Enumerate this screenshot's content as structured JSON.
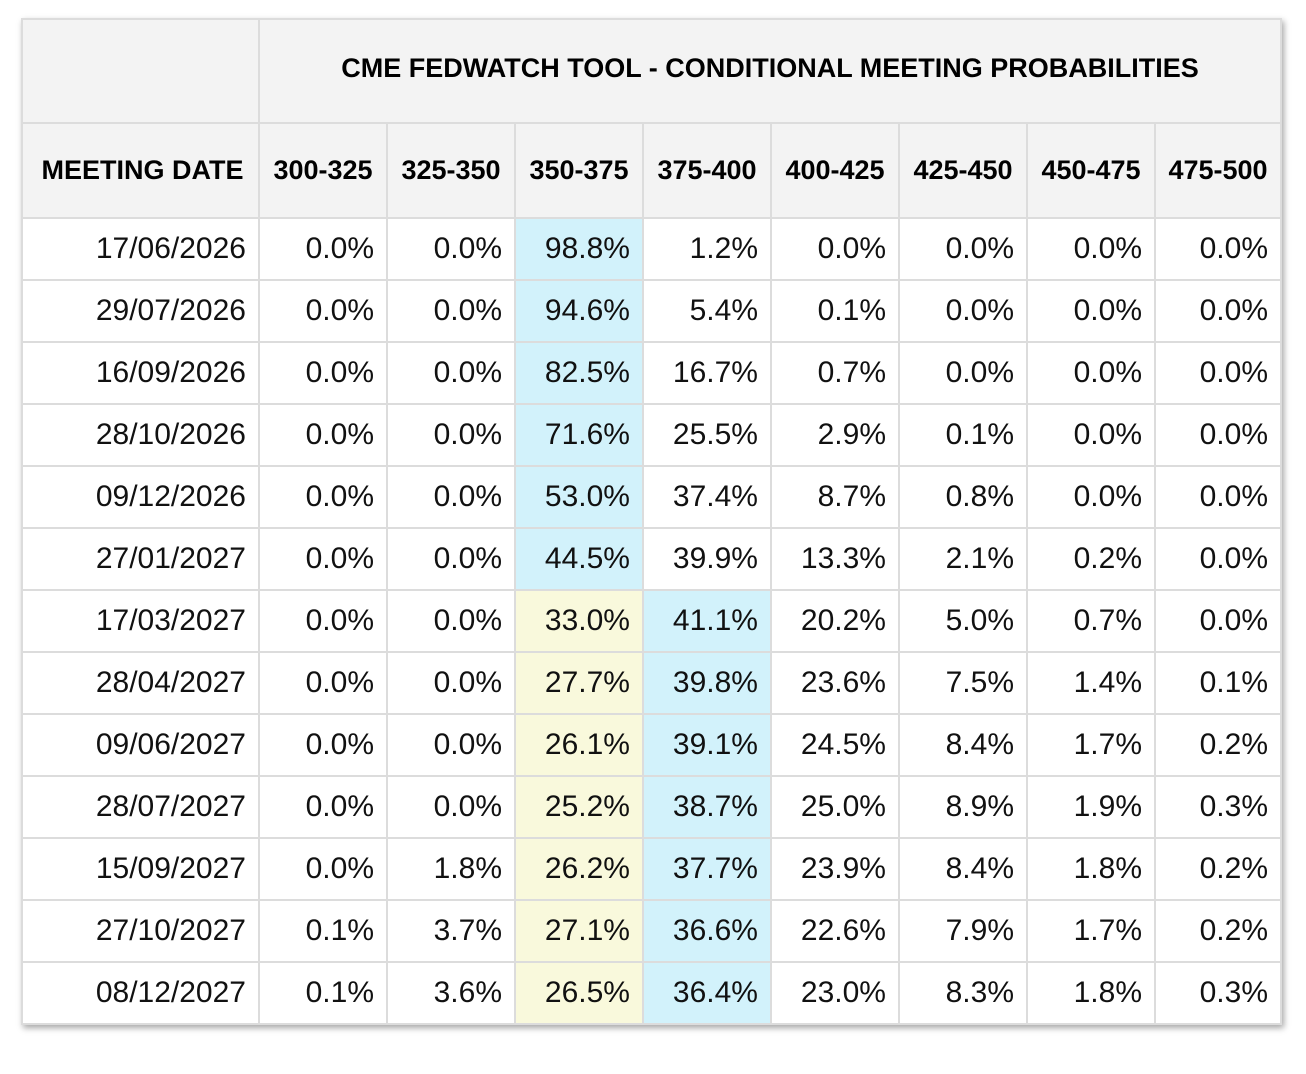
{
  "chart_data": {
    "type": "table",
    "title": "CME FEDWATCH TOOL - CONDITIONAL MEETING PROBABILITIES",
    "columns": [
      "MEETING DATE",
      "300-325",
      "325-350",
      "350-375",
      "375-400",
      "400-425",
      "425-450",
      "450-475",
      "475-500"
    ],
    "rows": [
      {
        "date": "17/06/2026",
        "values": [
          "0.0%",
          "0.0%",
          "98.8%",
          "1.2%",
          "0.0%",
          "0.0%",
          "0.0%",
          "0.0%"
        ],
        "highlight": {
          "blue": 2
        }
      },
      {
        "date": "29/07/2026",
        "values": [
          "0.0%",
          "0.0%",
          "94.6%",
          "5.4%",
          "0.1%",
          "0.0%",
          "0.0%",
          "0.0%"
        ],
        "highlight": {
          "blue": 2
        }
      },
      {
        "date": "16/09/2026",
        "values": [
          "0.0%",
          "0.0%",
          "82.5%",
          "16.7%",
          "0.7%",
          "0.0%",
          "0.0%",
          "0.0%"
        ],
        "highlight": {
          "blue": 2
        }
      },
      {
        "date": "28/10/2026",
        "values": [
          "0.0%",
          "0.0%",
          "71.6%",
          "25.5%",
          "2.9%",
          "0.1%",
          "0.0%",
          "0.0%"
        ],
        "highlight": {
          "blue": 2
        }
      },
      {
        "date": "09/12/2026",
        "values": [
          "0.0%",
          "0.0%",
          "53.0%",
          "37.4%",
          "8.7%",
          "0.8%",
          "0.0%",
          "0.0%"
        ],
        "highlight": {
          "blue": 2
        }
      },
      {
        "date": "27/01/2027",
        "values": [
          "0.0%",
          "0.0%",
          "44.5%",
          "39.9%",
          "13.3%",
          "2.1%",
          "0.2%",
          "0.0%"
        ],
        "highlight": {
          "blue": 2
        }
      },
      {
        "date": "17/03/2027",
        "values": [
          "0.0%",
          "0.0%",
          "33.0%",
          "41.1%",
          "20.2%",
          "5.0%",
          "0.7%",
          "0.0%"
        ],
        "highlight": {
          "yellow": 2,
          "blue": 3
        }
      },
      {
        "date": "28/04/2027",
        "values": [
          "0.0%",
          "0.0%",
          "27.7%",
          "39.8%",
          "23.6%",
          "7.5%",
          "1.4%",
          "0.1%"
        ],
        "highlight": {
          "yellow": 2,
          "blue": 3
        }
      },
      {
        "date": "09/06/2027",
        "values": [
          "0.0%",
          "0.0%",
          "26.1%",
          "39.1%",
          "24.5%",
          "8.4%",
          "1.7%",
          "0.2%"
        ],
        "highlight": {
          "yellow": 2,
          "blue": 3
        }
      },
      {
        "date": "28/07/2027",
        "values": [
          "0.0%",
          "0.0%",
          "25.2%",
          "38.7%",
          "25.0%",
          "8.9%",
          "1.9%",
          "0.3%"
        ],
        "highlight": {
          "yellow": 2,
          "blue": 3
        }
      },
      {
        "date": "15/09/2027",
        "values": [
          "0.0%",
          "1.8%",
          "26.2%",
          "37.7%",
          "23.9%",
          "8.4%",
          "1.8%",
          "0.2%"
        ],
        "highlight": {
          "yellow": 2,
          "blue": 3
        }
      },
      {
        "date": "27/10/2027",
        "values": [
          "0.1%",
          "3.7%",
          "27.1%",
          "36.6%",
          "22.6%",
          "7.9%",
          "1.7%",
          "0.2%"
        ],
        "highlight": {
          "yellow": 2,
          "blue": 3
        }
      },
      {
        "date": "08/12/2027",
        "values": [
          "0.1%",
          "3.6%",
          "26.5%",
          "36.4%",
          "23.0%",
          "8.3%",
          "1.8%",
          "0.3%"
        ],
        "highlight": {
          "yellow": 2,
          "blue": 3
        }
      }
    ],
    "colors": {
      "blue_highlight": "#d2f2fb",
      "yellow_highlight": "#f9f9dc",
      "header_bg": "#f3f3f3",
      "border": "#dcdcdc"
    }
  }
}
